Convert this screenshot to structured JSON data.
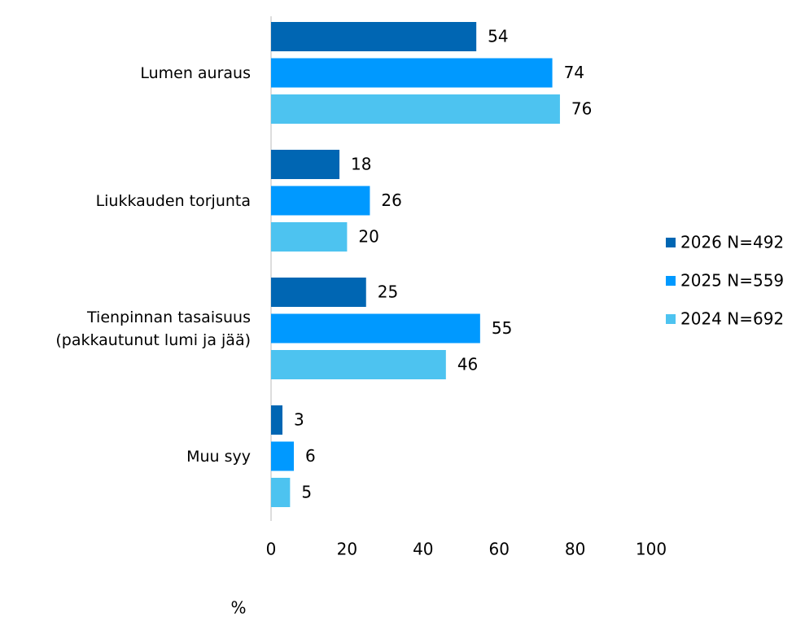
{
  "chart_data": {
    "type": "bar",
    "orientation": "horizontal",
    "categories": [
      "Lumen auraus",
      "Liukkauden torjunta",
      "Tienpinnan tasaisuus (pakkautunut lumi ja jää)",
      "Muu syy"
    ],
    "series": [
      {
        "name": "2026 N=492",
        "color": "#0066b3",
        "values": [
          54,
          18,
          25,
          3
        ]
      },
      {
        "name": "2025 N=559",
        "color": "#0099ff",
        "values": [
          74,
          26,
          55,
          6
        ]
      },
      {
        "name": "2024 N=692",
        "color": "#4dc3f0",
        "values": [
          76,
          20,
          46,
          5
        ]
      }
    ],
    "xlim": [
      0,
      100
    ],
    "xticks": [
      0,
      20,
      40,
      60,
      80,
      100
    ],
    "xlabel": "%",
    "legend": "right"
  }
}
